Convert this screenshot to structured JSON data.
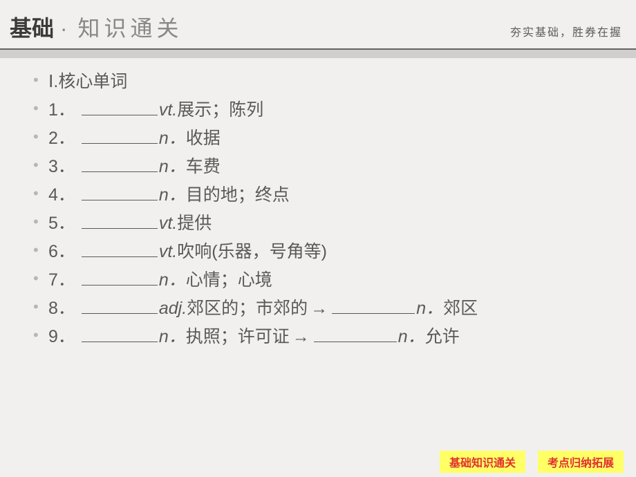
{
  "header": {
    "title_bold": "基础",
    "title_sep": "·",
    "title_light": "知识通关",
    "subtitle": "夯实基础，胜券在握"
  },
  "section_title": "Ⅰ.核心单词",
  "items": [
    {
      "num": "1．",
      "pos": "vt.",
      "def": "展示；陈列"
    },
    {
      "num": "2．",
      "pos": "n．",
      "def": "收据"
    },
    {
      "num": "3．",
      "pos": "n．",
      "def": "车费"
    },
    {
      "num": "4．",
      "pos": "n．",
      "def": "目的地；终点"
    },
    {
      "num": "5．",
      "pos": "vt.",
      "def": "提供"
    },
    {
      "num": "6．",
      "pos": "vt.",
      "def": "吹响(乐器，号角等)"
    },
    {
      "num": "7．",
      "pos": "n．",
      "def": "心情；心境"
    },
    {
      "num": "8．",
      "pos": "adj.",
      "def": "郊区的；市郊的",
      "arrow": "→",
      "pos2": "n．",
      "def2": "郊区"
    },
    {
      "num": "9．",
      "pos": "n．",
      "def": "执照；许可证",
      "arrow": "→",
      "pos2": "n．",
      "def2": "允许"
    }
  ],
  "footer": {
    "btn1": "基础知识通关",
    "btn2": "考点归纳拓展"
  }
}
